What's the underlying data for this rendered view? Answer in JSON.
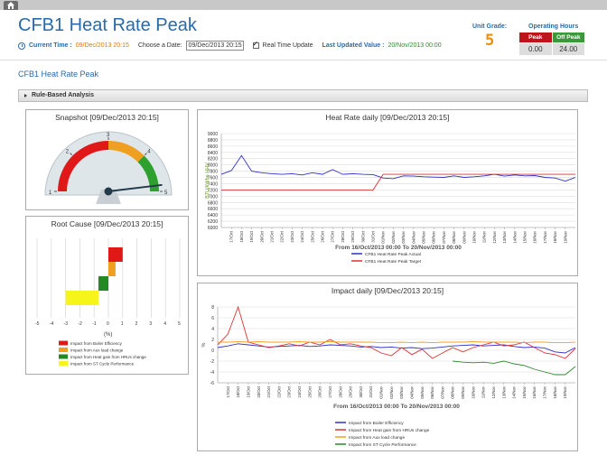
{
  "header": {
    "title": "CFB1 Heat Rate Peak",
    "current_time_label": "Current Time :",
    "current_time_value": "09/Dec/2013 20:15",
    "choose_date_label": "Choose a Date:",
    "choose_date_value": "09/Dec/2013 20:15",
    "realtime_label": "Real Time Update",
    "last_updated_label": "Last Updated Value :",
    "last_updated_value": "20/Nov/2013 00:00"
  },
  "unit_grade": {
    "label": "Unit Grade:",
    "value": "5"
  },
  "operating_hours": {
    "label": "Operating Hours",
    "peak_label": "Peak",
    "offpeak_label": "Off Peak",
    "peak_value": "0.00",
    "offpeak_value": "24.00",
    "colors": {
      "peak": "#c0141c",
      "offpeak": "#3a9a3a"
    }
  },
  "subtitle": "CFB1 Heat Rate Peak",
  "section": {
    "label": "Rule-Based Analysis"
  },
  "snapshot": {
    "title": "Snapshot [09/Dec/2013 20:15]",
    "gauge_labels": [
      "1",
      "2",
      "3",
      "4",
      "5"
    ],
    "value": 5,
    "band_colors": [
      "#e01818",
      "#f0a020",
      "#2ea02e"
    ]
  },
  "root_cause": {
    "title": "Root Cause [09/Dec/2013 20:15]",
    "xlabel": "(%)",
    "x_ticks": [
      "-5",
      "-4",
      "-3",
      "-2",
      "-1",
      "0",
      "1",
      "2",
      "3",
      "4",
      "5"
    ],
    "legend": [
      {
        "name": "Impact from Boiler Efficiency",
        "color": "#e01818"
      },
      {
        "name": "Impact from Aux load change",
        "color": "#f0a020"
      },
      {
        "name": "Impact from Heat gain from HRUs change",
        "color": "#238a23"
      },
      {
        "name": "Impact from ST Cycle Performance",
        "color": "#f5f51a"
      }
    ]
  },
  "chart_data": [
    {
      "type": "line",
      "title": "Heat Rate daily [09/Dec/2013 20:15]",
      "xlabel": "From 16/Oct/2013 00:00 To 20/Nov/2013 00:00",
      "ylabel": "BTU/kWhe HHV",
      "ylim": [
        6000,
        9000
      ],
      "y_ticks": [
        6000,
        6200,
        6400,
        6600,
        6800,
        7000,
        7200,
        7400,
        7600,
        7800,
        8000,
        8200,
        8400,
        8600,
        8800,
        9000
      ],
      "x": [
        "16/Oct",
        "17/Oct",
        "18/Oct",
        "19/Oct",
        "20/Oct",
        "21/Oct",
        "22/Oct",
        "23/Oct",
        "24/Oct",
        "25/Oct",
        "26/Oct",
        "27/Oct",
        "28/Oct",
        "29/Oct",
        "30/Oct",
        "31/Oct",
        "01/Nov",
        "02/Nov",
        "03/Nov",
        "04/Nov",
        "05/Nov",
        "06/Nov",
        "07/Nov",
        "08/Nov",
        "09/Nov",
        "10/Nov",
        "11/Nov",
        "12/Nov",
        "13/Nov",
        "14/Nov",
        "15/Nov",
        "16/Nov",
        "17/Nov",
        "18/Nov",
        "19/Nov",
        "20/Nov"
      ],
      "x_ticks": [
        "17/Oct",
        "18/Oct",
        "19/Oct",
        "20/Oct",
        "21/Oct",
        "22/Oct",
        "23/Oct",
        "24/Oct",
        "25/Oct",
        "26/Oct",
        "27/Oct",
        "28/Oct",
        "29/Oct",
        "30/Oct",
        "31/Oct",
        "01/Nov",
        "02/Nov",
        "03/Nov",
        "04/Nov",
        "05/Nov",
        "06/Nov",
        "07/Nov",
        "08/Nov",
        "09/Nov",
        "10/Nov",
        "11/Nov",
        "12/Nov",
        "13/Nov",
        "14/Nov",
        "15/Nov",
        "16/Nov",
        "17/Nov",
        "18/Nov",
        "19/Nov"
      ],
      "series": [
        {
          "name": "CFB1 Heat Rate Peak Actual",
          "color": "#3030c8",
          "values": [
            7700,
            7820,
            8300,
            7800,
            7750,
            7720,
            7700,
            7720,
            7680,
            7750,
            7700,
            7850,
            7700,
            7720,
            7700,
            7690,
            7580,
            7560,
            7650,
            7640,
            7620,
            7610,
            7600,
            7650,
            7600,
            7620,
            7650,
            7700,
            7640,
            7680,
            7650,
            7660,
            7600,
            7580,
            7480,
            7600
          ]
        },
        {
          "name": "CFB1 Heat Rate Peak Target",
          "color": "#e03030",
          "values": [
            7200,
            7200,
            7200,
            7200,
            7200,
            7200,
            7200,
            7200,
            7200,
            7200,
            7200,
            7200,
            7200,
            7200,
            7200,
            7200,
            7700,
            7700,
            7700,
            7700,
            7700,
            7700,
            7700,
            7700,
            7700,
            7700,
            7700,
            7700,
            7700,
            7700,
            7700,
            7700,
            7700,
            7700,
            7700,
            7700
          ]
        }
      ]
    },
    {
      "type": "line",
      "title": "Impact daily [09/Dec/2013 20:15]",
      "xlabel": "From 16/Oct/2013 00:00 To 20/Nov/2013 00:00",
      "ylabel": "%",
      "ylim": [
        -6,
        8
      ],
      "y_ticks": [
        -6,
        -4,
        -2,
        0,
        2,
        4,
        6,
        8
      ],
      "x": [
        "16/Oct",
        "17/Oct",
        "18/Oct",
        "19/Oct",
        "20/Oct",
        "21/Oct",
        "22/Oct",
        "23/Oct",
        "24/Oct",
        "25/Oct",
        "26/Oct",
        "27/Oct",
        "28/Oct",
        "29/Oct",
        "30/Oct",
        "31/Oct",
        "01/Nov",
        "02/Nov",
        "03/Nov",
        "04/Nov",
        "05/Nov",
        "06/Nov",
        "07/Nov",
        "08/Nov",
        "09/Nov",
        "10/Nov",
        "11/Nov",
        "12/Nov",
        "13/Nov",
        "14/Nov",
        "15/Nov",
        "16/Nov",
        "17/Nov",
        "18/Nov",
        "19/Nov",
        "20/Nov"
      ],
      "x_ticks": [
        "17/Oct",
        "18/Oct",
        "19/Oct",
        "20/Oct",
        "21/Oct",
        "22/Oct",
        "23/Oct",
        "24/Oct",
        "25/Oct",
        "26/Oct",
        "27/Oct",
        "28/Oct",
        "29/Oct",
        "30/Oct",
        "31/Oct",
        "01/Nov",
        "02/Nov",
        "03/Nov",
        "04/Nov",
        "05/Nov",
        "06/Nov",
        "07/Nov",
        "08/Nov",
        "09/Nov",
        "10/Nov",
        "11/Nov",
        "12/Nov",
        "13/Nov",
        "14/Nov",
        "15/Nov",
        "16/Nov",
        "17/Nov",
        "18/Nov",
        "19/Nov"
      ],
      "series": [
        {
          "name": "Impact from Boiler Efficiency",
          "color": "#3030c8",
          "values": [
            0.5,
            0.8,
            1.2,
            1.0,
            0.8,
            0.6,
            0.7,
            0.8,
            0.9,
            0.7,
            0.8,
            1.0,
            0.9,
            0.8,
            0.6,
            0.7,
            0.5,
            0.6,
            0.4,
            0.5,
            0.3,
            0.4,
            0.6,
            0.8,
            0.9,
            1.0,
            0.8,
            0.9,
            1.0,
            0.7,
            0.5,
            0.6,
            0.4,
            -0.3,
            -0.5,
            0.5
          ]
        },
        {
          "name": "Impact from Heat gain from HRUs change",
          "color": "#e03030",
          "values": [
            1.0,
            3.0,
            8.0,
            1.5,
            1.0,
            0.5,
            0.8,
            1.2,
            0.8,
            1.5,
            1.0,
            2.0,
            1.0,
            1.2,
            0.8,
            0.5,
            -0.5,
            -1.0,
            0.5,
            -0.8,
            0.2,
            -1.5,
            -0.5,
            0.5,
            -0.3,
            0.5,
            1.0,
            1.5,
            0.8,
            1.0,
            1.5,
            0.5,
            -0.5,
            -0.8,
            -1.5,
            0.3
          ]
        },
        {
          "name": "Impact from Aux load change",
          "color": "#f0a020",
          "values": [
            1.5,
            1.5,
            1.6,
            1.5,
            1.6,
            1.5,
            1.5,
            1.5,
            1.6,
            1.5,
            1.5,
            1.6,
            1.5,
            1.5,
            1.5,
            1.5,
            1.4,
            1.4,
            1.5,
            1.4,
            1.5,
            1.4,
            1.5,
            1.5,
            1.5,
            1.6,
            1.5,
            1.5,
            1.5,
            1.5,
            1.4,
            1.5,
            1.5,
            1.4,
            1.4,
            1.5
          ]
        },
        {
          "name": "Impact from ST Cycle Performance",
          "color": "#2a8a2a",
          "values": [
            null,
            null,
            null,
            null,
            null,
            null,
            null,
            null,
            null,
            null,
            null,
            null,
            null,
            null,
            null,
            null,
            null,
            null,
            null,
            null,
            null,
            null,
            null,
            -2.0,
            -2.2,
            -2.3,
            -2.2,
            -2.4,
            -2.0,
            -2.5,
            -2.8,
            -3.5,
            -4.0,
            -4.5,
            -4.5,
            -3.0
          ]
        }
      ]
    }
  ],
  "root_cause_bars": [
    {
      "name": "Impact from Boiler Efficiency",
      "color": "#e01818",
      "start": 0,
      "end": 1.0
    },
    {
      "name": "Impact from Aux load change",
      "color": "#f0a020",
      "start": 0,
      "end": 0.5
    },
    {
      "name": "Impact from Heat gain from HRUs change",
      "color": "#238a23",
      "start": -0.7,
      "end": 0
    },
    {
      "name": "Impact from ST Cycle Performance",
      "color": "#f5f51a",
      "start": -3.0,
      "end": -0.7
    }
  ]
}
